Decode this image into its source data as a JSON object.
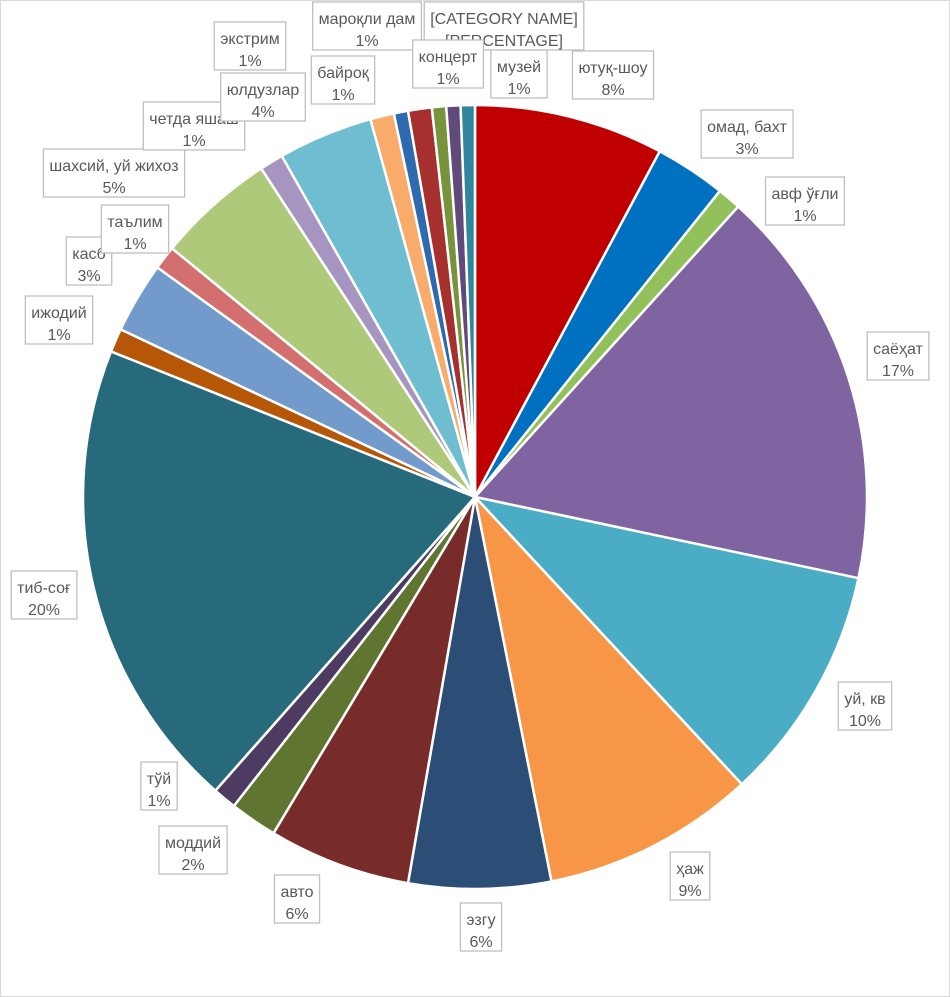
{
  "chart_data": {
    "type": "pie",
    "title": "",
    "slices": [
      {
        "category": "ютуқ-шоу",
        "value": 8,
        "label_pct": "8%",
        "color": "#C00000"
      },
      {
        "category": "омад, бахт",
        "value": 3,
        "label_pct": "3%",
        "color": "#0070C0"
      },
      {
        "category": "авф ўғли",
        "value": 1,
        "label_pct": "1%",
        "color": "#92C05A"
      },
      {
        "category": "саёҳат",
        "value": 17,
        "label_pct": "17%",
        "color": "#8064A2"
      },
      {
        "category": "уй, кв",
        "value": 10,
        "label_pct": "10%",
        "color": "#4BACC6"
      },
      {
        "category": "ҳаж",
        "value": 9,
        "label_pct": "9%",
        "color": "#F79646"
      },
      {
        "category": "эзгу",
        "value": 6,
        "label_pct": "6%",
        "color": "#2C4D75"
      },
      {
        "category": "авто",
        "value": 6,
        "label_pct": "6%",
        "color": "#772C2A"
      },
      {
        "category": "моддий",
        "value": 2,
        "label_pct": "2%",
        "color": "#5F7530"
      },
      {
        "category": "тўй",
        "value": 1,
        "label_pct": "1%",
        "color": "#4D3B62"
      },
      {
        "category": "тиб-соғ",
        "value": 20,
        "label_pct": "20%",
        "color": "#276A7C"
      },
      {
        "category": "ижодий",
        "value": 1,
        "label_pct": "1%",
        "color": "#B65708"
      },
      {
        "category": "касб",
        "value": 3,
        "label_pct": "3%",
        "color": "#729ACA"
      },
      {
        "category": "таълим",
        "value": 1,
        "label_pct": "1%",
        "color": "#D3706F"
      },
      {
        "category": "шахсий, уй жихоз",
        "value": 5,
        "label_pct": "5%",
        "color": "#AFC97A"
      },
      {
        "category": "четда яшаш",
        "value": 1,
        "label_pct": "1%",
        "color": "#A694C1"
      },
      {
        "category": "юлдузлар",
        "value": 4,
        "label_pct": "4%",
        "color": "#6FBDD1"
      },
      {
        "category": "экстрим",
        "value": 1,
        "label_pct": "1%",
        "color": "#F9AB6B"
      },
      {
        "category": "байроқ",
        "value": 0.6,
        "label_pct": "1%",
        "color": "#2E6AB0"
      },
      {
        "category": "мароқли дам",
        "value": 1,
        "label_pct": "1%",
        "color": "#A5302E"
      },
      {
        "category": "[CATEGORY NAME]",
        "value": 0.6,
        "label_pct": "[PERCENTAGE]",
        "color": "#77933C"
      },
      {
        "category": "концерт",
        "value": 0.6,
        "label_pct": "1%",
        "color": "#604A7B"
      },
      {
        "category": "музей",
        "value": 0.6,
        "label_pct": "1%",
        "color": "#31859C"
      }
    ]
  }
}
